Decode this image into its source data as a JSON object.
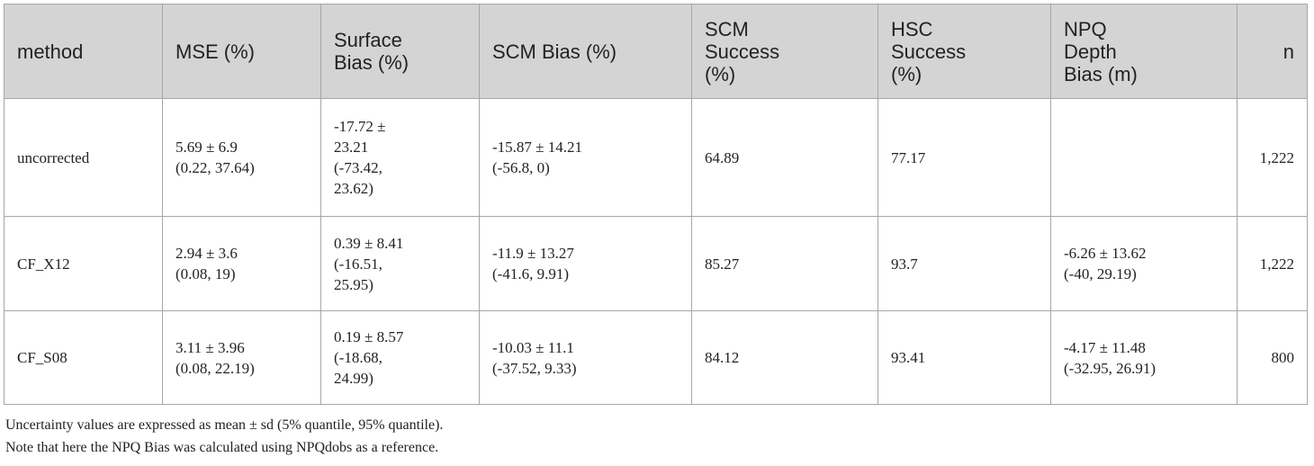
{
  "table": {
    "headers": [
      [
        "method"
      ],
      [
        "MSE (%)"
      ],
      [
        "Surface",
        "Bias (%)"
      ],
      [
        "SCM Bias (%)"
      ],
      [
        "SCM",
        "Success",
        "(%)"
      ],
      [
        "HSC",
        "Success",
        "(%)"
      ],
      [
        "NPQ",
        "Depth",
        "Bias (m)"
      ],
      [
        "n"
      ]
    ],
    "rows": [
      [
        [
          "uncorrected"
        ],
        [
          "5.69 ± 6.9",
          "(0.22, 37.64)"
        ],
        [
          "-17.72 ±",
          "23.21",
          "(-73.42,",
          "23.62)"
        ],
        [
          "-15.87 ± 14.21",
          "(-56.8, 0)"
        ],
        [
          "64.89"
        ],
        [
          "77.17"
        ],
        [],
        [
          "1,222"
        ]
      ],
      [
        [
          "CF_X12"
        ],
        [
          "2.94 ± 3.6",
          "(0.08, 19)"
        ],
        [
          "0.39 ± 8.41",
          "(-16.51,",
          "25.95)"
        ],
        [
          "-11.9 ± 13.27",
          "(-41.6, 9.91)"
        ],
        [
          "85.27"
        ],
        [
          "93.7"
        ],
        [
          "-6.26 ± 13.62",
          "(-40, 29.19)"
        ],
        [
          "1,222"
        ]
      ],
      [
        [
          "CF_S08"
        ],
        [
          "3.11 ± 3.96",
          "(0.08, 22.19)"
        ],
        [
          "0.19 ± 8.57",
          "(-18.68,",
          "24.99)"
        ],
        [
          "-10.03 ± 11.1",
          "(-37.52, 9.33)"
        ],
        [
          "84.12"
        ],
        [
          "93.41"
        ],
        [
          "-4.17 ± 11.48",
          "(-32.95, 26.91)"
        ],
        [
          "800"
        ]
      ]
    ]
  },
  "notes": [
    "Uncertainty values are expressed as mean ± sd (5% quantile, 95% quantile).",
    "Note that here the NPQ Bias was calculated using NPQdobs as a reference."
  ]
}
